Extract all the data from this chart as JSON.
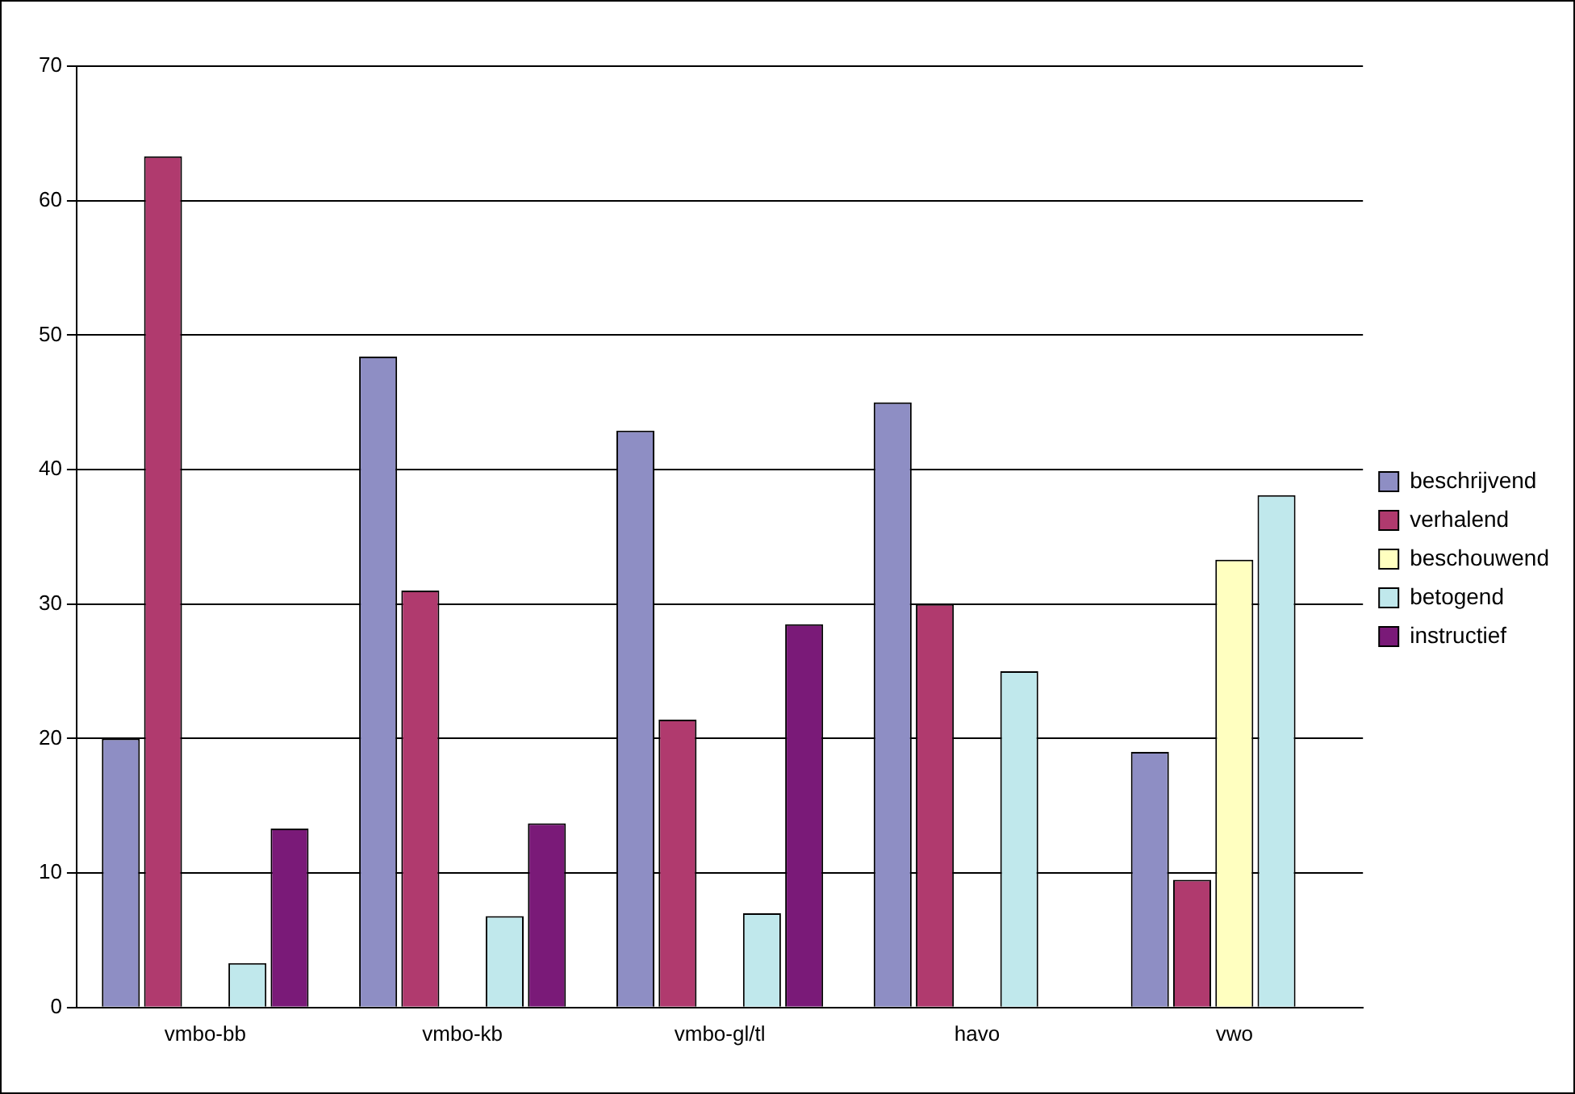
{
  "chart_data": {
    "type": "bar",
    "categories": [
      "vmbo-bb",
      "vmbo-kb",
      "vmbo-gl/tl",
      "havo",
      "vwo"
    ],
    "series": [
      {
        "name": "beschrijvend",
        "color": "#8e8ec4",
        "values": [
          20,
          48.4,
          42.9,
          45,
          19
        ]
      },
      {
        "name": "verhalend",
        "color": "#b03a6e",
        "values": [
          63.3,
          31,
          21.4,
          30,
          9.5
        ]
      },
      {
        "name": "beschouwend",
        "color": "#ffffc0",
        "values": [
          0,
          0,
          0,
          0,
          33.3
        ]
      },
      {
        "name": "betogend",
        "color": "#c0e8ec",
        "values": [
          3.3,
          6.8,
          7,
          25,
          38.1
        ]
      },
      {
        "name": "instructief",
        "color": "#7a1a78",
        "values": [
          13.3,
          13.7,
          28.5,
          0,
          0
        ]
      }
    ],
    "ylim": [
      0,
      70
    ],
    "yticks": [
      0,
      10,
      20,
      30,
      40,
      50,
      60,
      70
    ],
    "grid": "y",
    "legend": "right"
  }
}
